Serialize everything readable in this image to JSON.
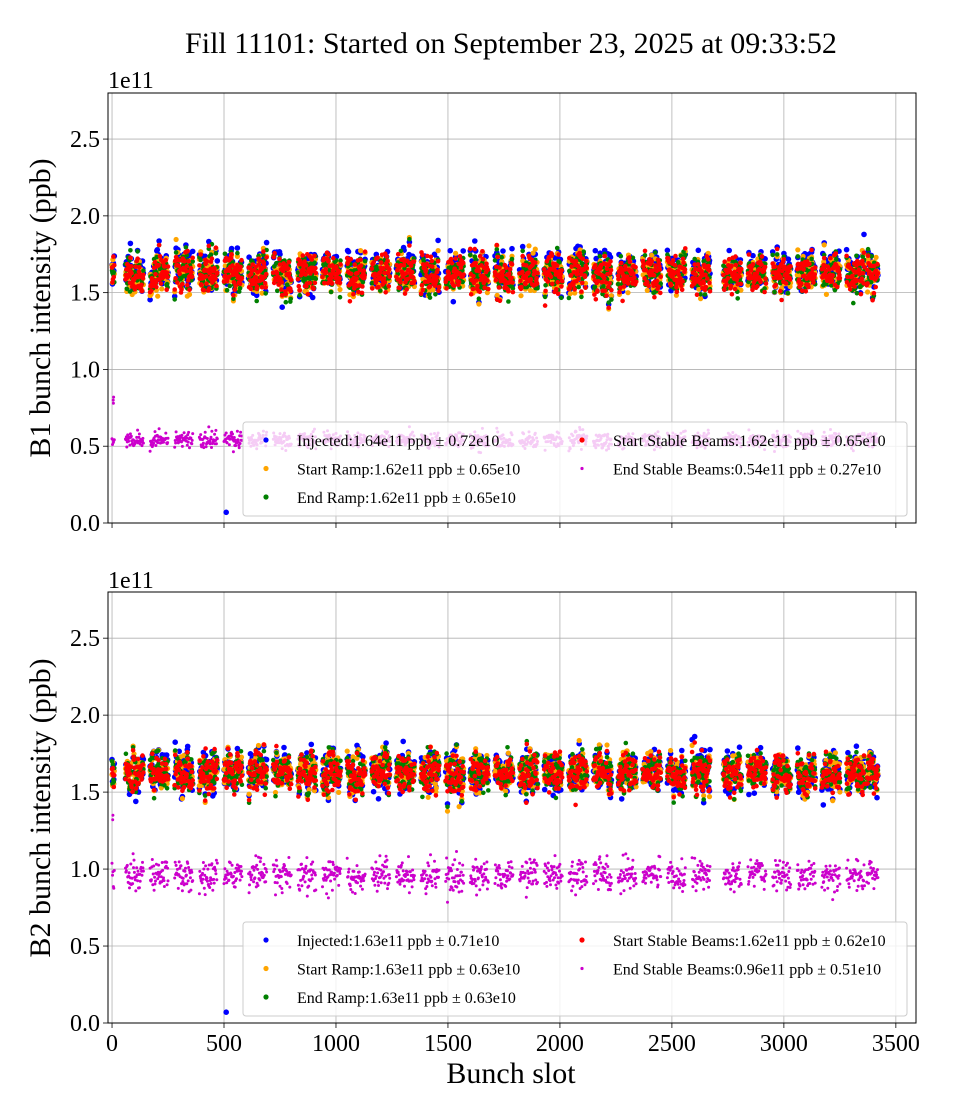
{
  "title": "Fill 11101: Started on September 23, 2025 at 09:33:52",
  "chart_data": [
    {
      "type": "scatter",
      "ylabel": "B1 bunch intensity (ppb)",
      "xlabel": "",
      "offset_label": "1e11",
      "xlim": [
        -18,
        3590
      ],
      "ylim": [
        0,
        2.8
      ],
      "xticks": [
        0,
        500,
        1000,
        1500,
        2000,
        2500,
        3000,
        3500
      ],
      "xtick_labels_visible": false,
      "yticks": [
        0.0,
        0.5,
        1.0,
        1.5,
        2.0,
        2.5
      ],
      "ytick_labels": [
        "0.0",
        "0.5",
        "1.0",
        "1.5",
        "2.0",
        "2.5"
      ],
      "grid": true,
      "legend_placement": "lower-right",
      "filled_slot_ranges": [
        [
          60,
          140
        ],
        [
          170,
          250
        ],
        [
          280,
          360
        ],
        [
          390,
          470
        ],
        [
          500,
          580
        ],
        [
          610,
          690
        ],
        [
          720,
          800
        ],
        [
          830,
          910
        ],
        [
          940,
          1020
        ],
        [
          1050,
          1130
        ],
        [
          1160,
          1240
        ],
        [
          1270,
          1350
        ],
        [
          1380,
          1460
        ],
        [
          1490,
          1570
        ],
        [
          1600,
          1680
        ],
        [
          1710,
          1790
        ],
        [
          1820,
          1900
        ],
        [
          1930,
          2010
        ],
        [
          2040,
          2120
        ],
        [
          2150,
          2230
        ],
        [
          2260,
          2340
        ],
        [
          2370,
          2450
        ],
        [
          2480,
          2560
        ],
        [
          2590,
          2670
        ],
        [
          2730,
          2810
        ],
        [
          2840,
          2920
        ],
        [
          2950,
          3030
        ],
        [
          3060,
          3140
        ],
        [
          3170,
          3250
        ],
        [
          3280,
          3360
        ],
        [
          3370,
          3420
        ]
      ],
      "series": [
        {
          "name": "Injected",
          "legend": "Injected:1.64e11 ppb ± 0.72e10",
          "mean": 1.64,
          "std": 0.072,
          "color": "#0000ff",
          "outliers": [
            [
              510,
              0.07
            ]
          ]
        },
        {
          "name": "Start Ramp",
          "legend": "Start Ramp:1.62e11 ppb ± 0.65e10",
          "mean": 1.62,
          "std": 0.065,
          "color": "#ffa500"
        },
        {
          "name": "End Ramp",
          "legend": "End Ramp:1.62e11 ppb ± 0.65e10",
          "mean": 1.62,
          "std": 0.065,
          "color": "#008000"
        },
        {
          "name": "Start Stable Beams",
          "legend": "Start Stable Beams:1.62e11 ppb ± 0.65e10",
          "mean": 1.62,
          "std": 0.065,
          "color": "#ff0000"
        },
        {
          "name": "End Stable Beams",
          "legend": "End Stable Beams:0.54e11 ppb ± 0.27e10",
          "mean": 0.54,
          "std": 0.027,
          "color": "#cc00cc",
          "outliers": [
            [
              5,
              0.8
            ],
            [
              6,
              0.78
            ],
            [
              7,
              0.82
            ]
          ]
        }
      ]
    },
    {
      "type": "scatter",
      "ylabel": "B2 bunch intensity (ppb)",
      "xlabel": "Bunch slot",
      "offset_label": "1e11",
      "xlim": [
        -18,
        3590
      ],
      "ylim": [
        0,
        2.8
      ],
      "xticks": [
        0,
        500,
        1000,
        1500,
        2000,
        2500,
        3000,
        3500
      ],
      "xtick_labels": [
        "0",
        "500",
        "1000",
        "1500",
        "2000",
        "2500",
        "3000",
        "3500"
      ],
      "yticks": [
        0.0,
        0.5,
        1.0,
        1.5,
        2.0,
        2.5
      ],
      "ytick_labels": [
        "0.0",
        "0.5",
        "1.0",
        "1.5",
        "2.0",
        "2.5"
      ],
      "grid": true,
      "legend_placement": "lower-right",
      "filled_slot_ranges": [
        [
          60,
          140
        ],
        [
          170,
          250
        ],
        [
          280,
          360
        ],
        [
          390,
          470
        ],
        [
          500,
          580
        ],
        [
          610,
          690
        ],
        [
          720,
          800
        ],
        [
          830,
          910
        ],
        [
          940,
          1020
        ],
        [
          1050,
          1130
        ],
        [
          1160,
          1240
        ],
        [
          1270,
          1350
        ],
        [
          1380,
          1460
        ],
        [
          1490,
          1570
        ],
        [
          1600,
          1680
        ],
        [
          1710,
          1790
        ],
        [
          1820,
          1900
        ],
        [
          1930,
          2010
        ],
        [
          2040,
          2120
        ],
        [
          2150,
          2230
        ],
        [
          2260,
          2340
        ],
        [
          2370,
          2450
        ],
        [
          2480,
          2560
        ],
        [
          2590,
          2670
        ],
        [
          2730,
          2810
        ],
        [
          2840,
          2920
        ],
        [
          2950,
          3030
        ],
        [
          3060,
          3140
        ],
        [
          3170,
          3250
        ],
        [
          3280,
          3360
        ],
        [
          3370,
          3420
        ]
      ],
      "series": [
        {
          "name": "Injected",
          "legend": "Injected:1.63e11 ppb ± 0.71e10",
          "mean": 1.63,
          "std": 0.071,
          "color": "#0000ff",
          "outliers": [
            [
              510,
              0.07
            ]
          ]
        },
        {
          "name": "Start Ramp",
          "legend": "Start Ramp:1.63e11 ppb ± 0.63e10",
          "mean": 1.63,
          "std": 0.063,
          "color": "#ffa500"
        },
        {
          "name": "End Ramp",
          "legend": "End Ramp:1.63e11 ppb ± 0.63e10",
          "mean": 1.63,
          "std": 0.063,
          "color": "#008000"
        },
        {
          "name": "Start Stable Beams",
          "legend": "Start Stable Beams:1.62e11 ppb ± 0.62e10",
          "mean": 1.62,
          "std": 0.062,
          "color": "#ff0000"
        },
        {
          "name": "End Stable Beams",
          "legend": "End Stable Beams:0.96e11 ppb ± 0.51e10",
          "mean": 0.96,
          "std": 0.051,
          "color": "#cc00cc",
          "outliers": [
            [
              3,
              1.32
            ],
            [
              4,
              1.35
            ]
          ]
        }
      ]
    }
  ]
}
